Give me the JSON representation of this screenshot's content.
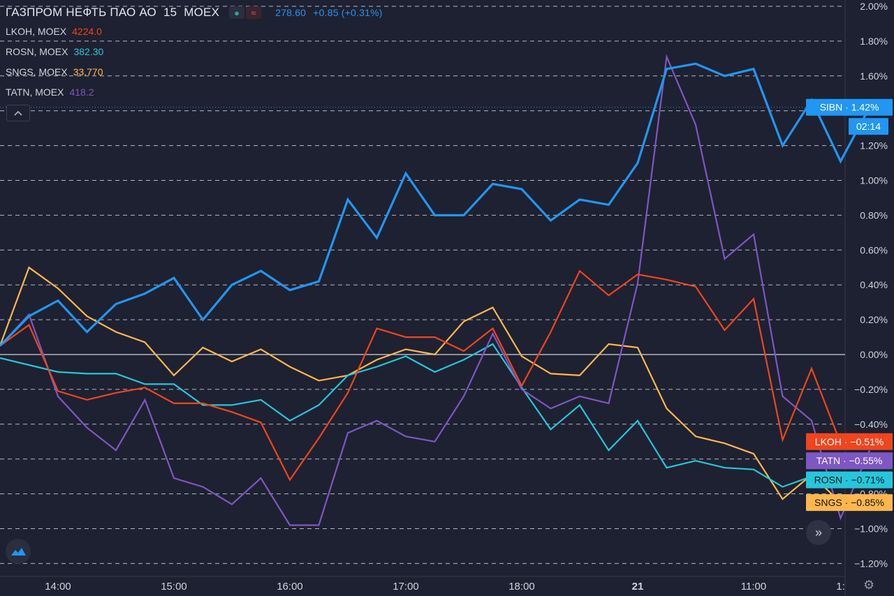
{
  "header": {
    "symbol": "ГАЗПРОМ НЕФТЬ ПАО АО",
    "interval": "15",
    "exchange": "MOEX",
    "icons": [
      "dot-icon",
      "wave-icon"
    ],
    "price": "278.60",
    "change": "+0.85 (+0.31%)",
    "price_color": "#2196f3"
  },
  "compare": [
    {
      "label": "LKOH, MOEX",
      "value": "4224.0",
      "color": "#f0451e"
    },
    {
      "label": "ROSN, MOEX",
      "value": "382.30",
      "color": "#26c6da"
    },
    {
      "label": "SNGS, MOEX",
      "value": "33.770",
      "color": "#ffb74d"
    },
    {
      "label": "TATN, MOEX",
      "value": "418.2",
      "color": "#7e57c2"
    }
  ],
  "controls": {
    "collapse_icon": "chevron-up-icon",
    "logo_icon": "tradingview-logo-icon",
    "scroll_icon": "double-chevron-right-icon",
    "settings_icon": "gear-icon"
  },
  "chart_data": {
    "type": "line",
    "ylim": [
      -1.25,
      2.02
    ],
    "y_ticks": [
      2.0,
      1.8,
      1.6,
      1.4,
      1.2,
      1.0,
      0.8,
      0.6,
      0.4,
      0.2,
      0.0,
      -0.2,
      -0.4,
      -0.6,
      -0.8,
      -1.0,
      -1.2
    ],
    "y_tick_labels": [
      "2.00%",
      "1.80%",
      "1.60%",
      "",
      "1.20%",
      "1.00%",
      "0.80%",
      "0.60%",
      "0.40%",
      "0.20%",
      "0.00%",
      "−0.20%",
      "−0.40%",
      "",
      "−0.80%",
      "−1.00%",
      "−1.20%"
    ],
    "x_tick_labels": [
      {
        "label": "14:00",
        "x": 2
      },
      {
        "label": "15:00",
        "x": 6
      },
      {
        "label": "16:00",
        "x": 10
      },
      {
        "label": "17:00",
        "x": 14
      },
      {
        "label": "18:00",
        "x": 18
      },
      {
        "label": "21",
        "x": 22
      },
      {
        "label": "11:00",
        "x": 26
      },
      {
        "label": "1:",
        "x": 29
      }
    ],
    "zero_line": 0.0,
    "grid": true,
    "crosshair_y": 1.42,
    "series": [
      {
        "name": "SIBN",
        "color": "#2196f3",
        "width": 3.2,
        "values": [
          0.05,
          0.22,
          0.31,
          0.13,
          0.29,
          0.35,
          0.44,
          0.2,
          0.4,
          0.48,
          0.37,
          0.42,
          0.89,
          0.67,
          1.04,
          0.8,
          0.8,
          0.98,
          0.95,
          0.77,
          0.89,
          0.86,
          1.1,
          1.64,
          1.67,
          1.6,
          1.64,
          1.2,
          1.46,
          1.11,
          1.42
        ]
      },
      {
        "name": "LKOH",
        "color": "#f0451e",
        "width": 2.2,
        "values": [
          0.05,
          0.17,
          -0.21,
          -0.26,
          -0.22,
          -0.19,
          -0.28,
          -0.28,
          -0.33,
          -0.39,
          -0.72,
          -0.48,
          -0.22,
          0.15,
          0.1,
          0.1,
          0.02,
          0.15,
          -0.18,
          0.13,
          0.48,
          0.34,
          0.46,
          0.43,
          0.39,
          0.14,
          0.32,
          -0.49,
          -0.08,
          -0.51
        ]
      },
      {
        "name": "TATN",
        "color": "#7e57c2",
        "width": 2.2,
        "values": [
          0.05,
          0.23,
          -0.24,
          -0.42,
          -0.55,
          -0.26,
          -0.71,
          -0.76,
          -0.86,
          -0.71,
          -0.98,
          -0.98,
          -0.45,
          -0.38,
          -0.47,
          -0.5,
          -0.24,
          0.12,
          -0.2,
          -0.31,
          -0.24,
          -0.28,
          0.41,
          1.71,
          1.32,
          0.55,
          0.69,
          -0.24,
          -0.38,
          -0.94,
          -0.55
        ]
      },
      {
        "name": "ROSN",
        "color": "#26c6da",
        "width": 2.2,
        "values": [
          -0.02,
          -0.06,
          -0.1,
          -0.11,
          -0.11,
          -0.17,
          -0.17,
          -0.29,
          -0.29,
          -0.26,
          -0.38,
          -0.29,
          -0.12,
          -0.07,
          -0.01,
          -0.1,
          -0.03,
          0.06,
          -0.19,
          -0.43,
          -0.29,
          -0.55,
          -0.38,
          -0.65,
          -0.61,
          -0.65,
          -0.66,
          -0.76,
          -0.7,
          -0.71
        ]
      },
      {
        "name": "SNGS",
        "color": "#ffb74d",
        "width": 2.2,
        "values": [
          0.05,
          0.5,
          0.38,
          0.22,
          0.13,
          0.07,
          -0.12,
          0.04,
          -0.04,
          0.03,
          -0.07,
          -0.15,
          -0.12,
          -0.03,
          0.03,
          0.0,
          0.19,
          0.27,
          -0.01,
          -0.11,
          -0.12,
          0.06,
          0.04,
          -0.31,
          -0.47,
          -0.51,
          -0.57,
          -0.83,
          -0.69,
          -0.85
        ]
      }
    ],
    "price_labels": [
      {
        "name": "SIBN",
        "text": "SIBN · 1.42%",
        "y": 1.42,
        "bg": "#2196f3",
        "fg": "#ffffff"
      },
      {
        "name": "SIBN-countdown",
        "text": "02:14",
        "y": 1.31,
        "bg": "#2196f3",
        "fg": "#ffffff"
      },
      {
        "name": "LKOH",
        "text": "LKOH · −0.51%",
        "y": -0.5,
        "bg": "#f0451e",
        "fg": "#ffffff"
      },
      {
        "name": "TATN",
        "text": "TATN · −0.55%",
        "y": -0.61,
        "bg": "#7e57c2",
        "fg": "#ffffff"
      },
      {
        "name": "ROSN",
        "text": "ROSN · −0.71%",
        "y": -0.72,
        "bg": "#26c6da",
        "fg": "#10131c"
      },
      {
        "name": "SNGS",
        "text": "SNGS · −0.85%",
        "y": -0.85,
        "bg": "#ffb74d",
        "fg": "#10131c"
      }
    ]
  }
}
